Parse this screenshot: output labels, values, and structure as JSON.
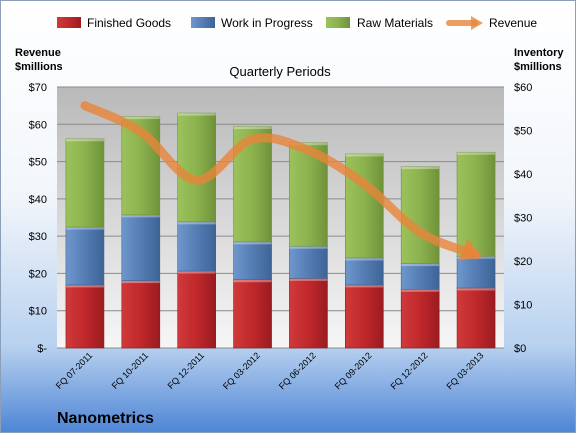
{
  "chart_data": {
    "type": "bar",
    "title": "Quarterly Periods",
    "company": "Nanometrics",
    "left_axis_label": [
      "Revenue",
      "$millions"
    ],
    "right_axis_label": [
      "Inventory",
      "$millions"
    ],
    "left_ticks": [
      "$-",
      "$10",
      "$20",
      "$30",
      "$40",
      "$50",
      "$60",
      "$70"
    ],
    "right_ticks": [
      "$0",
      "$10",
      "$20",
      "$30",
      "$40",
      "$50",
      "$60"
    ],
    "left_ylim": [
      0,
      70
    ],
    "right_ylim": [
      0,
      60
    ],
    "legend_position": "top",
    "categories": [
      "FQ 07-2011",
      "FQ 10-2011",
      "FQ 12-2011",
      "FQ 03-2012",
      "FQ 06-2012",
      "FQ 09-2012",
      "FQ 12-2012",
      "FQ 03-2013"
    ],
    "series": [
      {
        "name": "Finished Goods",
        "axis": "right",
        "color": "#c0282c",
        "values": [
          14.5,
          15.5,
          17.7,
          15.7,
          16.0,
          14.5,
          13.5,
          13.8
        ]
      },
      {
        "name": "Work in Progress",
        "axis": "right",
        "color": "#4f81bd",
        "values": [
          13.3,
          15.1,
          11.3,
          8.7,
          7.4,
          6.2,
          5.9,
          7.3
        ]
      },
      {
        "name": "Raw Materials",
        "axis": "right",
        "color": "#8cb24f",
        "values": [
          20.3,
          22.6,
          25.0,
          26.5,
          23.8,
          23.9,
          22.3,
          23.9
        ]
      },
      {
        "name": "Revenue",
        "axis": "left",
        "type": "line",
        "color": "#e8843a",
        "values": [
          65,
          58,
          45,
          56,
          53,
          44,
          31,
          25
        ]
      }
    ]
  }
}
